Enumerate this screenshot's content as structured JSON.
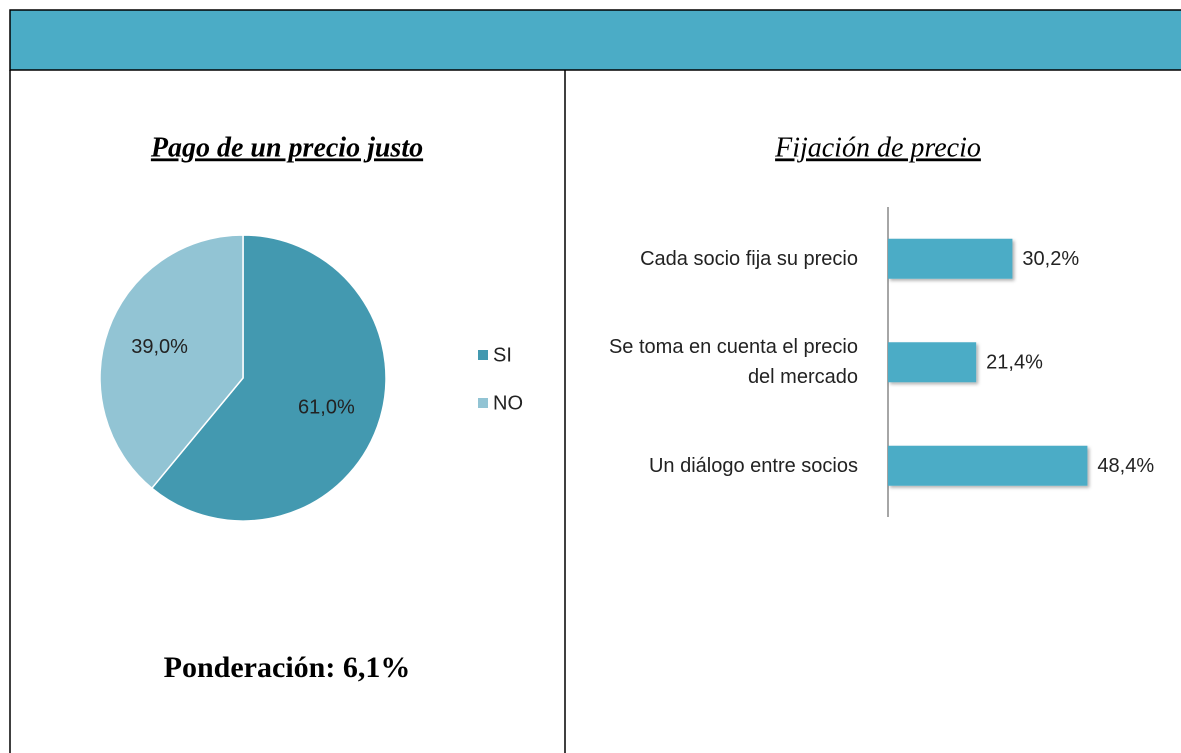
{
  "chart_data": [
    {
      "type": "pie",
      "title": "Pago de un precio justo",
      "categories": [
        "SI",
        "NO"
      ],
      "values": [
        61.0,
        39.0
      ],
      "value_labels": [
        "61,0%",
        "39,0%"
      ],
      "colors": [
        "#4399b0",
        "#92c4d4"
      ],
      "legend": "right",
      "annotation": "Ponderación: 6,1%"
    },
    {
      "type": "hbar",
      "title": "Fijación de precio",
      "categories": [
        "Cada socio fija su precio",
        "Se toma en cuenta el precio del mercado",
        "Un diálogo entre socios"
      ],
      "values": [
        30.2,
        21.4,
        48.4
      ],
      "value_labels": [
        "30,2%",
        "21,4%",
        "48,4%"
      ],
      "color": "#4bacc6"
    }
  ]
}
